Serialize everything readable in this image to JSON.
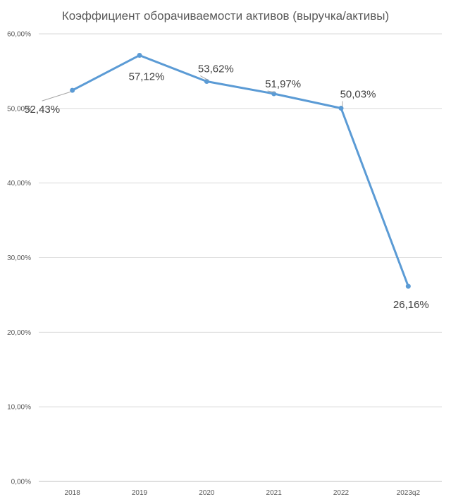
{
  "chart_data": {
    "type": "line",
    "title": "Коэффициент оборачиваемости активов (выручка/активы)",
    "categories": [
      "2018",
      "2019",
      "2020",
      "2021",
      "2022",
      "2023q2"
    ],
    "series": [
      {
        "values": [
          52.43,
          57.12,
          53.62,
          51.97,
          50.03,
          26.16
        ],
        "data_labels": [
          "52,43%",
          "57,12%",
          "53,62%",
          "51,97%",
          "50,03%",
          "26,16%"
        ]
      }
    ],
    "ylim": [
      0,
      60
    ],
    "y_ticks": [
      0,
      10,
      20,
      30,
      40,
      50,
      60
    ],
    "y_tick_labels": [
      "0,00%",
      "10,00%",
      "20,00%",
      "30,00%",
      "40,00%",
      "50,00%",
      "60,00%"
    ],
    "grid": true,
    "legend": "none",
    "colors": {
      "line": "#5b9bd5",
      "grid": "#d9d9d9",
      "text": "#595959"
    }
  }
}
